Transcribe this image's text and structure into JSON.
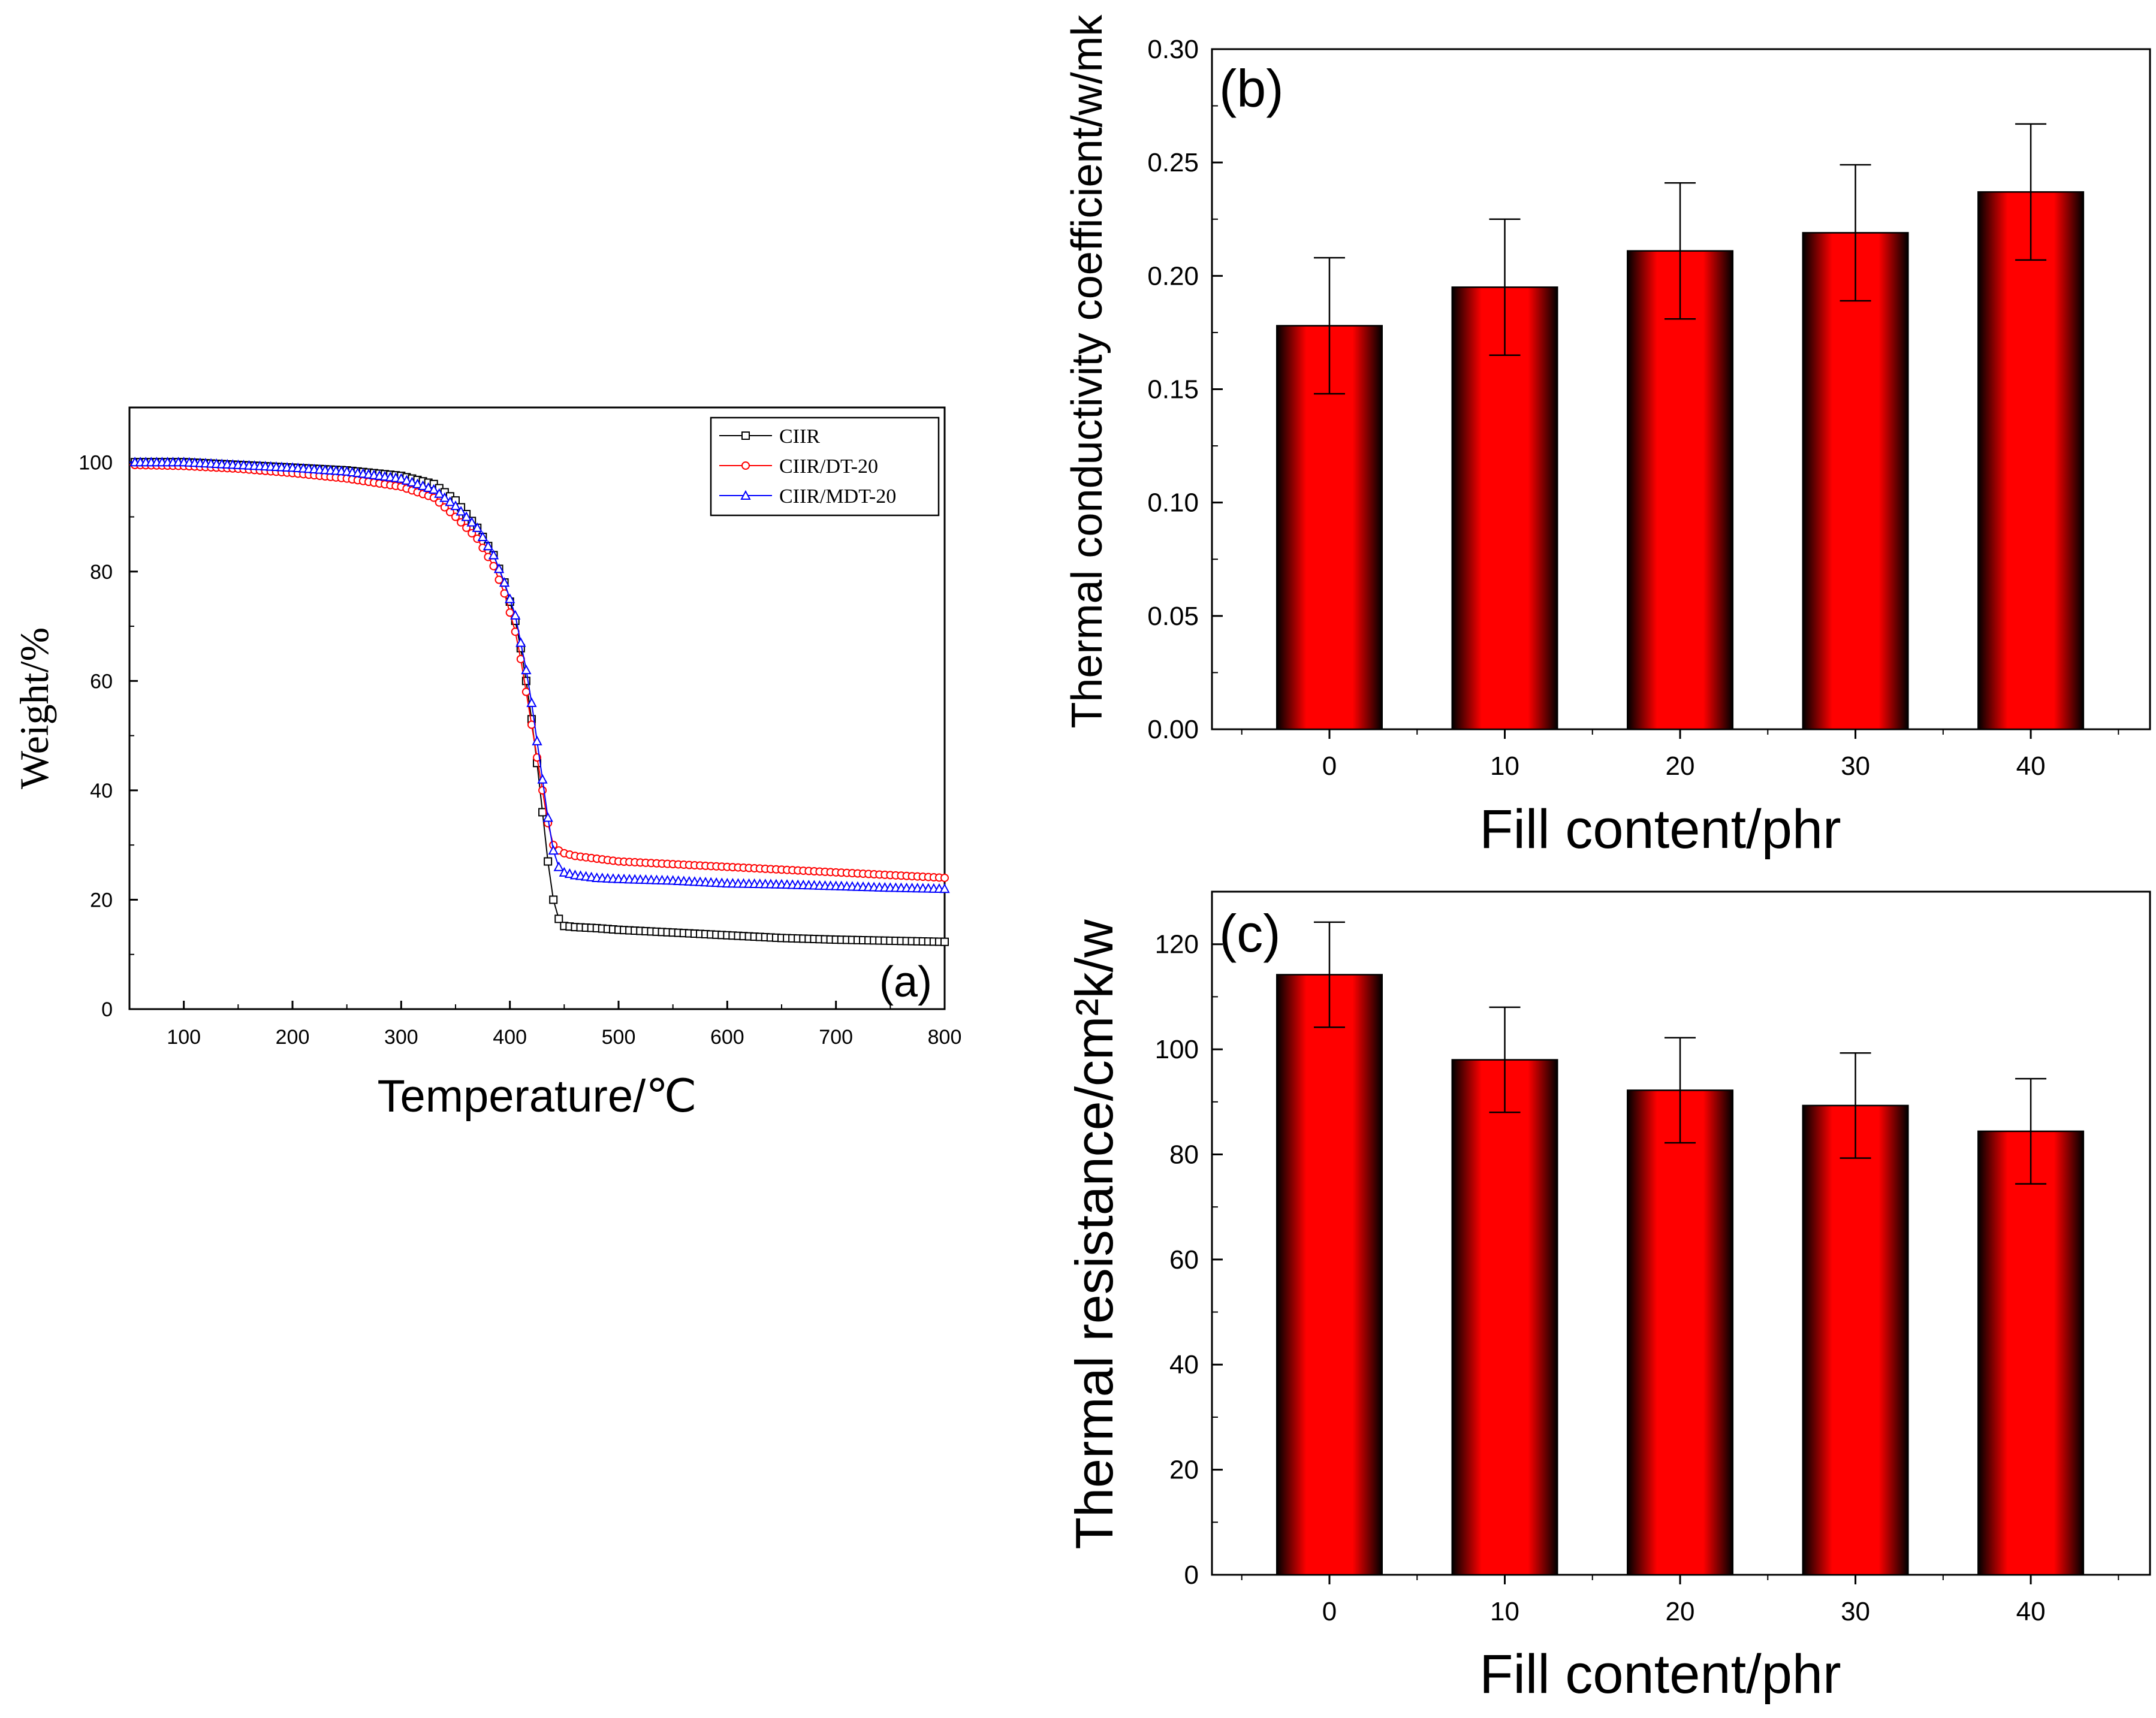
{
  "chart_data": [
    {
      "id": "a",
      "type": "scatter",
      "panel_label": "(a)",
      "xlabel": "Temperature/℃",
      "ylabel": "Weight/%",
      "xlim": [
        50,
        800
      ],
      "ylim": [
        0,
        110
      ],
      "xticks": [
        100,
        200,
        300,
        400,
        500,
        600,
        700,
        800
      ],
      "yticks": [
        0,
        20,
        40,
        60,
        80,
        100
      ],
      "legend_position": "top-right",
      "series": [
        {
          "name": "CIIR",
          "color": "#000000",
          "marker": "square",
          "x": [
            50,
            100,
            150,
            200,
            250,
            300,
            330,
            350,
            370,
            385,
            395,
            405,
            410,
            415,
            420,
            425,
            430,
            435,
            440,
            445,
            450,
            460,
            480,
            500,
            550,
            600,
            650,
            700,
            750,
            800
          ],
          "y": [
            100,
            100,
            99.5,
            99,
            98.5,
            97.5,
            96,
            93,
            88,
            83,
            78,
            71,
            66,
            60,
            53,
            45,
            36,
            27,
            20,
            16.5,
            15.2,
            15,
            14.8,
            14.5,
            14,
            13.5,
            13,
            12.7,
            12.5,
            12.3
          ]
        },
        {
          "name": "CIIR/DT-20",
          "color": "#ff0000",
          "marker": "circle",
          "x": [
            50,
            100,
            150,
            200,
            250,
            300,
            330,
            350,
            370,
            385,
            395,
            405,
            410,
            415,
            420,
            425,
            430,
            435,
            440,
            445,
            450,
            460,
            480,
            500,
            550,
            600,
            650,
            700,
            750,
            800
          ],
          "y": [
            99.5,
            99.3,
            98.8,
            98,
            97,
            95.5,
            93.5,
            90,
            86,
            81,
            76,
            69,
            64,
            58,
            52,
            46,
            40,
            34,
            30,
            29,
            28.5,
            28,
            27.5,
            27,
            26.5,
            26,
            25.5,
            25,
            24.5,
            24
          ]
        },
        {
          "name": "CIIR/MDT-20",
          "color": "#0000ff",
          "marker": "triangle",
          "x": [
            50,
            100,
            150,
            200,
            250,
            300,
            330,
            350,
            370,
            385,
            395,
            405,
            410,
            415,
            420,
            425,
            430,
            435,
            440,
            445,
            450,
            460,
            480,
            500,
            550,
            600,
            650,
            700,
            750,
            800
          ],
          "y": [
            100,
            100,
            99.5,
            99,
            98.3,
            97,
            95,
            92,
            88,
            83,
            78,
            72,
            67,
            62,
            56,
            49,
            42,
            35,
            29,
            26,
            25,
            24.5,
            24,
            23.8,
            23.5,
            23,
            22.8,
            22.5,
            22.2,
            22
          ]
        }
      ]
    },
    {
      "id": "b",
      "type": "bar",
      "panel_label": "(b)",
      "xlabel": "Fill content/phr",
      "ylabel": "Thermal conductivity coefficient/w/mk",
      "categories": [
        "0",
        "10",
        "20",
        "30",
        "40"
      ],
      "values": [
        0.178,
        0.195,
        0.211,
        0.219,
        0.237
      ],
      "errors": [
        0.03,
        0.03,
        0.03,
        0.03,
        0.03
      ],
      "ylim": [
        0,
        0.3
      ],
      "yticks": [
        "0.00",
        "0.05",
        "0.10",
        "0.15",
        "0.20",
        "0.25",
        "0.30"
      ],
      "bar_color": "#ff0000"
    },
    {
      "id": "c",
      "type": "bar",
      "panel_label": "(c)",
      "xlabel": "Fill content/phr",
      "ylabel": "Thermal resistance/cm²k/w",
      "categories": [
        "0",
        "10",
        "20",
        "30",
        "40"
      ],
      "values": [
        114.2,
        98.0,
        92.2,
        89.3,
        84.4
      ],
      "errors": [
        10,
        10,
        10,
        10,
        10
      ],
      "ylim": [
        0,
        130
      ],
      "yticks": [
        "0",
        "20",
        "40",
        "60",
        "80",
        "100",
        "120"
      ],
      "bar_color": "#ff0000"
    }
  ]
}
